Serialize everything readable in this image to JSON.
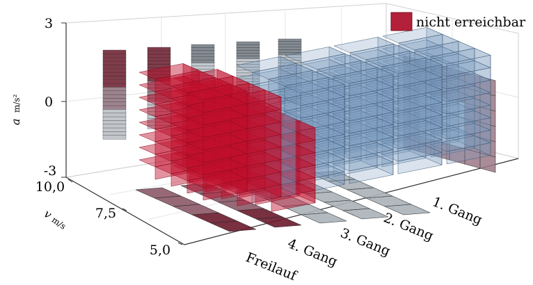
{
  "chart_data": {
    "type": "3d-voxel",
    "z_axis": {
      "label": "a",
      "unit": "m/s²",
      "ticks": [
        "3",
        "0",
        "-3"
      ],
      "range": [
        -3,
        3
      ]
    },
    "y_axis": {
      "label": "v",
      "unit": "m/s",
      "ticks": [
        "10,0",
        "7,5",
        "5,0"
      ],
      "range": [
        5,
        10
      ]
    },
    "x_axis": {
      "ticks": [
        "Freilauf",
        "4. Gang",
        "3. Gang",
        "2. Gang",
        "1. Gang"
      ]
    },
    "legend": {
      "entries": [
        {
          "label": "nicht erreichbar",
          "color": "#b3203a"
        }
      ],
      "placement": "top-right"
    },
    "colors": {
      "reachable": "#7b9cbf",
      "unreachable": "#c0102c",
      "projection_dark": "#6a1a2c",
      "projection_light": "#9aa4ae"
    },
    "series": [
      {
        "name": "nicht erreichbar",
        "gears": [
          "Freilauf",
          "4. Gang"
        ]
      }
    ]
  }
}
